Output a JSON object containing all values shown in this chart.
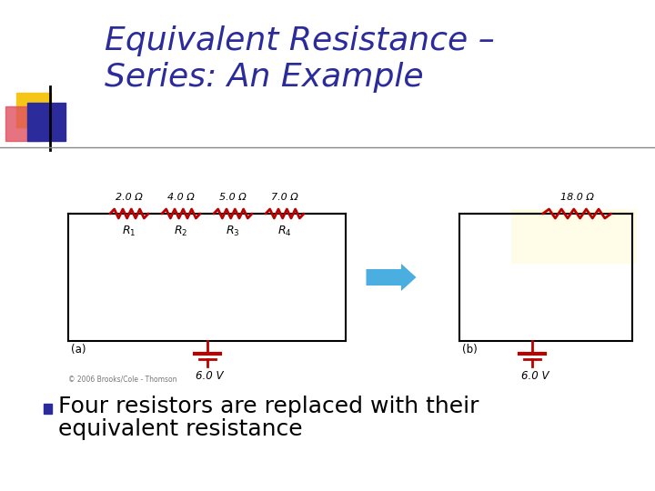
{
  "title_line1": "Equivalent Resistance –",
  "title_line2": "Series: An Example",
  "title_color": "#2B2B9B",
  "title_fontsize": 26,
  "bg_color": "#FFFFFF",
  "bullet_text_line1": "Four resistors are replaced with their",
  "bullet_text_line2": "equivalent resistance",
  "bullet_color": "#2B2B9B",
  "bullet_fontsize": 18,
  "resistor_color": "#BB0000",
  "wire_color": "#000000",
  "arrow_color": "#4AAEE0",
  "highlight_color": "#FFFFF0",
  "label_fontsize": 8,
  "r_label_fontsize": 9,
  "copyright_text": "© 2006 Brooks/Cole - Thomson",
  "decoration_gold": "#F5C518",
  "decoration_red": "#E05060",
  "decoration_blue": "#2B2B9B",
  "header_line_color": "#888888",
  "res_labels": [
    "2.0 Ω",
    "4.0 Ω",
    "5.0 Ω",
    "7.0 Ω"
  ],
  "r_sub_labels": [
    "R_1",
    "R_2",
    "R_3",
    "R_4"
  ],
  "eq_res_label": "18.0 Ω",
  "voltage_label": "6.0 V",
  "a_label": "(a)",
  "b_label": "(b)"
}
